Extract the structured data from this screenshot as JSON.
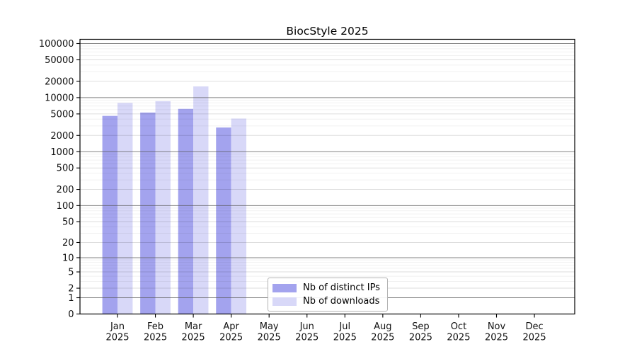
{
  "chart_data": {
    "type": "bar",
    "title": "BiocStyle 2025",
    "months": [
      "Jan",
      "Feb",
      "Mar",
      "Apr",
      "May",
      "Jun",
      "Jul",
      "Aug",
      "Sep",
      "Oct",
      "Nov",
      "Dec"
    ],
    "year": "2025",
    "series": [
      {
        "name": "Nb of distinct IPs",
        "color": "#a3a3ee",
        "values": [
          4600,
          5300,
          6200,
          2800,
          null,
          null,
          null,
          null,
          null,
          null,
          null,
          null
        ]
      },
      {
        "name": "Nb of downloads",
        "color": "#d8d8f8",
        "values": [
          8000,
          8600,
          16100,
          4100,
          null,
          null,
          null,
          null,
          null,
          null,
          null,
          null
        ]
      }
    ],
    "y_ticks": [
      100000,
      50000,
      20000,
      10000,
      5000,
      2000,
      1000,
      500,
      200,
      100,
      50,
      20,
      10,
      5,
      2,
      1,
      0
    ],
    "y_scale": "log10(value+1)",
    "ylim": [
      0,
      110000
    ],
    "xlabel": "",
    "ylabel": "",
    "grid": "horizontal",
    "legend_position": "lower-center-inside"
  },
  "colors": {
    "background": "#ffffff",
    "axis": "#000000",
    "grid_major": "#9a9a9a",
    "grid_labeled": "#dedede",
    "grid_minor": "#efefef",
    "bar_distinct_ips": "#a3a3ee",
    "bar_downloads": "#d8d8f8",
    "legend_border": "#b3b3b3"
  }
}
